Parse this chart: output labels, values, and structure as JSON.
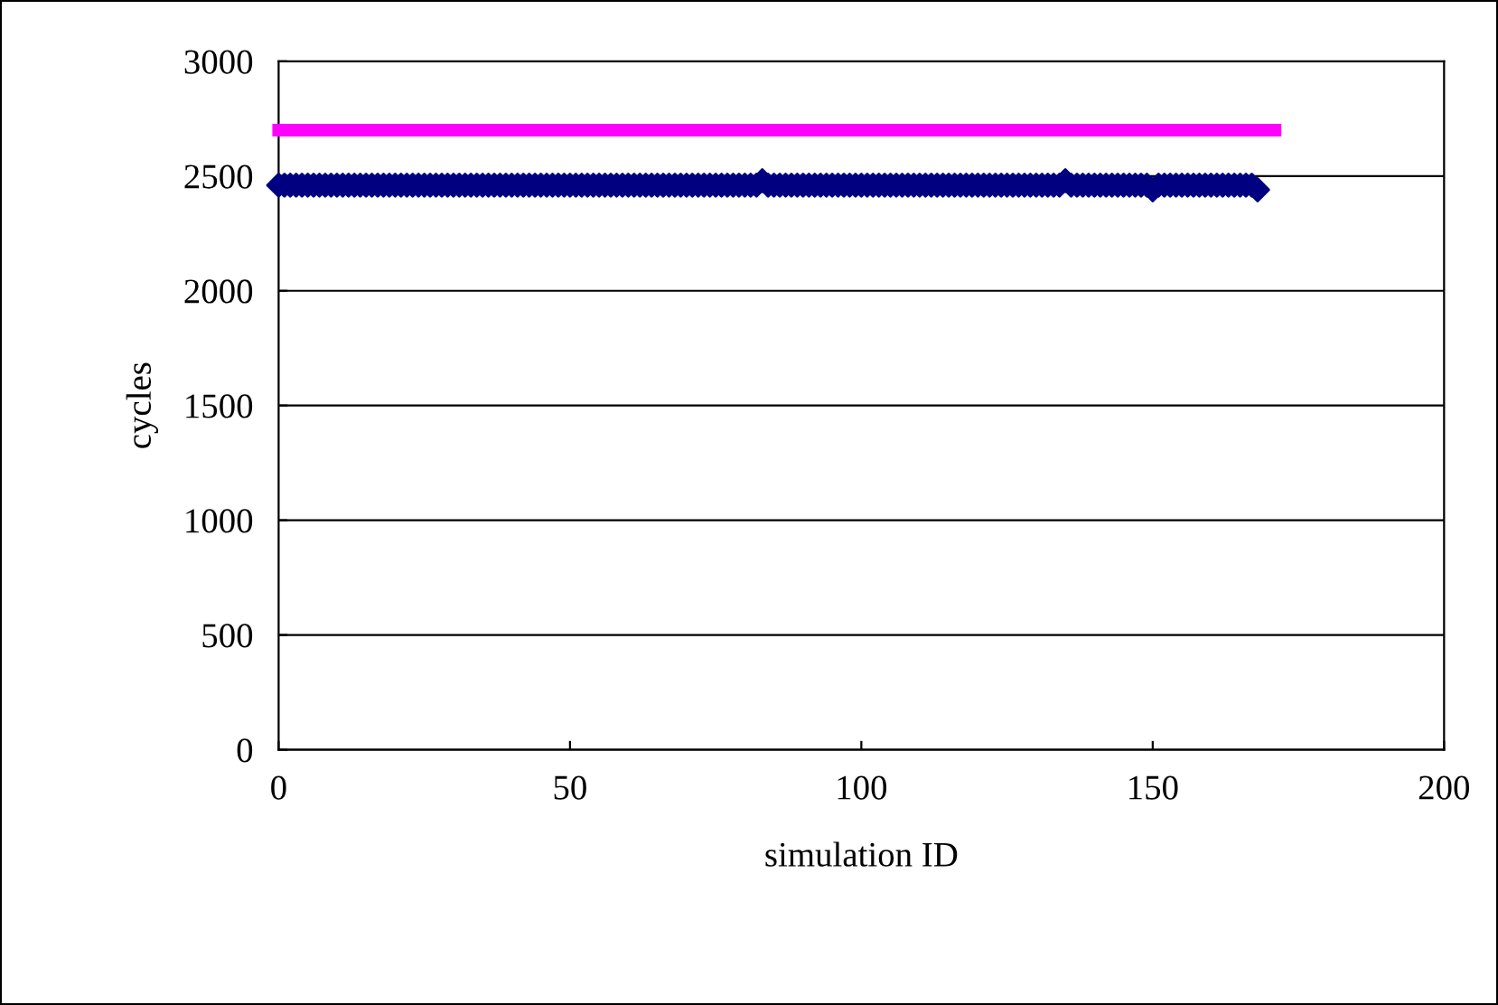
{
  "chart_data": {
    "type": "scatter",
    "xlabel": "simulation ID",
    "ylabel": "cycles",
    "xlim": [
      0,
      200
    ],
    "xticks": [
      0,
      50,
      100,
      150,
      200
    ],
    "ylim": [
      0,
      3000
    ],
    "yticks": [
      0,
      500,
      1000,
      1500,
      2000,
      2500,
      3000
    ],
    "grid": "y",
    "legend": false,
    "series": [
      {
        "marker": "diamond",
        "color": "#000080",
        "x": [
          0,
          1,
          2,
          3,
          4,
          5,
          6,
          7,
          8,
          9,
          10,
          11,
          12,
          13,
          14,
          15,
          16,
          17,
          18,
          19,
          20,
          21,
          22,
          23,
          24,
          25,
          26,
          27,
          28,
          29,
          30,
          31,
          32,
          33,
          34,
          35,
          36,
          37,
          38,
          39,
          40,
          41,
          42,
          43,
          44,
          45,
          46,
          47,
          48,
          49,
          50,
          51,
          52,
          53,
          54,
          55,
          56,
          57,
          58,
          59,
          60,
          61,
          62,
          63,
          64,
          65,
          66,
          67,
          68,
          69,
          70,
          71,
          72,
          73,
          74,
          75,
          76,
          77,
          78,
          79,
          80,
          81,
          82,
          83,
          84,
          85,
          86,
          87,
          88,
          89,
          90,
          91,
          92,
          93,
          94,
          95,
          96,
          97,
          98,
          99,
          100,
          101,
          102,
          103,
          104,
          105,
          106,
          107,
          108,
          109,
          110,
          111,
          112,
          113,
          114,
          115,
          116,
          117,
          118,
          119,
          120,
          121,
          122,
          123,
          124,
          125,
          126,
          127,
          128,
          129,
          130,
          131,
          132,
          133,
          134,
          135,
          136,
          137,
          138,
          139,
          140,
          141,
          142,
          143,
          144,
          145,
          146,
          147,
          148,
          149,
          150,
          151,
          152,
          153,
          154,
          155,
          156,
          157,
          158,
          159,
          160,
          161,
          162,
          163,
          164,
          165,
          166,
          167,
          168
        ],
        "values": [
          2460,
          2460,
          2460,
          2460,
          2460,
          2460,
          2460,
          2460,
          2460,
          2460,
          2460,
          2460,
          2460,
          2460,
          2460,
          2460,
          2460,
          2460,
          2460,
          2460,
          2460,
          2460,
          2460,
          2460,
          2460,
          2460,
          2460,
          2460,
          2460,
          2460,
          2460,
          2460,
          2460,
          2460,
          2460,
          2460,
          2460,
          2460,
          2460,
          2460,
          2460,
          2460,
          2460,
          2460,
          2460,
          2460,
          2460,
          2460,
          2460,
          2460,
          2460,
          2460,
          2460,
          2460,
          2460,
          2460,
          2460,
          2460,
          2460,
          2460,
          2460,
          2460,
          2460,
          2460,
          2460,
          2460,
          2460,
          2460,
          2460,
          2460,
          2460,
          2460,
          2460,
          2460,
          2460,
          2460,
          2460,
          2460,
          2460,
          2460,
          2460,
          2460,
          2460,
          2480,
          2460,
          2460,
          2460,
          2460,
          2460,
          2460,
          2460,
          2460,
          2460,
          2460,
          2460,
          2460,
          2460,
          2460,
          2460,
          2460,
          2460,
          2460,
          2460,
          2460,
          2460,
          2460,
          2460,
          2460,
          2460,
          2460,
          2460,
          2460,
          2460,
          2460,
          2460,
          2460,
          2460,
          2460,
          2460,
          2460,
          2460,
          2460,
          2460,
          2460,
          2460,
          2460,
          2460,
          2460,
          2460,
          2460,
          2460,
          2460,
          2460,
          2460,
          2460,
          2480,
          2460,
          2460,
          2460,
          2460,
          2460,
          2460,
          2460,
          2460,
          2460,
          2460,
          2460,
          2460,
          2460,
          2460,
          2440,
          2460,
          2460,
          2460,
          2460,
          2460,
          2460,
          2460,
          2460,
          2460,
          2460,
          2460,
          2460,
          2460,
          2460,
          2460,
          2460,
          2460,
          2440
        ]
      },
      {
        "type": "line",
        "marker": "none",
        "color": "#ff00ff",
        "x": [
          0,
          171
        ],
        "values": [
          2700,
          2700
        ]
      }
    ]
  }
}
